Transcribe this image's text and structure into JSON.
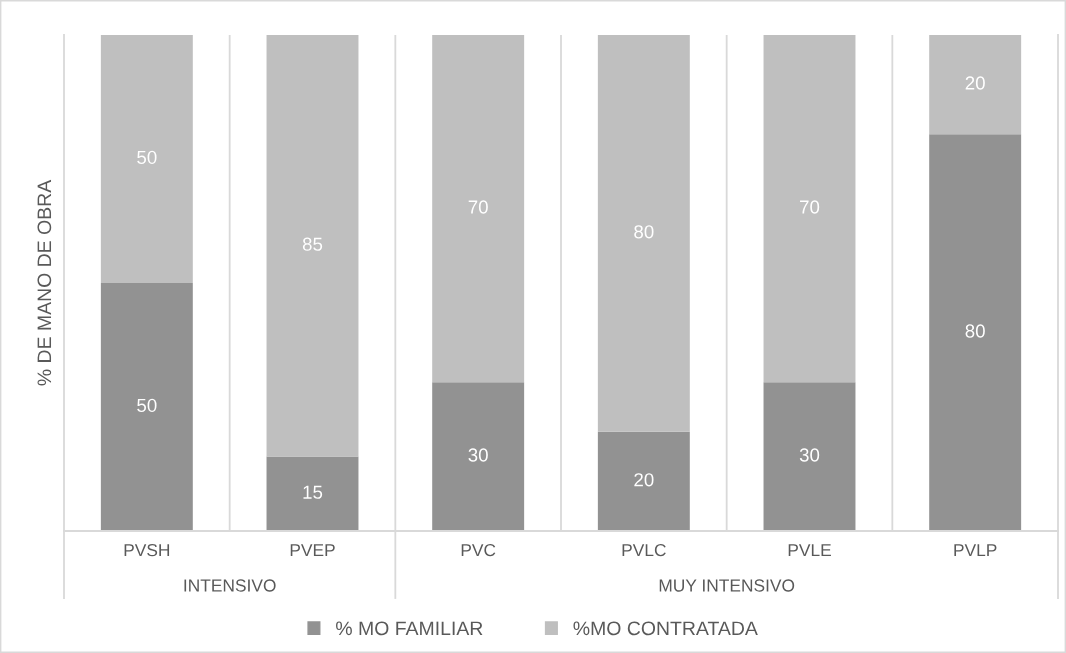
{
  "chart_data": {
    "type": "bar",
    "stacked": true,
    "ylabel": "% DE MANO DE OBRA",
    "categories": [
      "PVSH",
      "PVEP",
      "PVC",
      "PVLC",
      "PVLE",
      "PVLP"
    ],
    "series": [
      {
        "name": "% MO FAMILIAR",
        "color": "#929292",
        "values": [
          50,
          15,
          30,
          20,
          30,
          80
        ]
      },
      {
        "name": "%MO CONTRATADA",
        "color": "#bfbfbf",
        "values": [
          50,
          85,
          70,
          80,
          70,
          20
        ]
      }
    ],
    "ylim": [
      0,
      100
    ],
    "data_labels": true,
    "grid": "x",
    "legend": "bottom",
    "tick_labels": "x",
    "annotations": [
      "INTENSIVO",
      "MUY INTENSIVO"
    ]
  }
}
